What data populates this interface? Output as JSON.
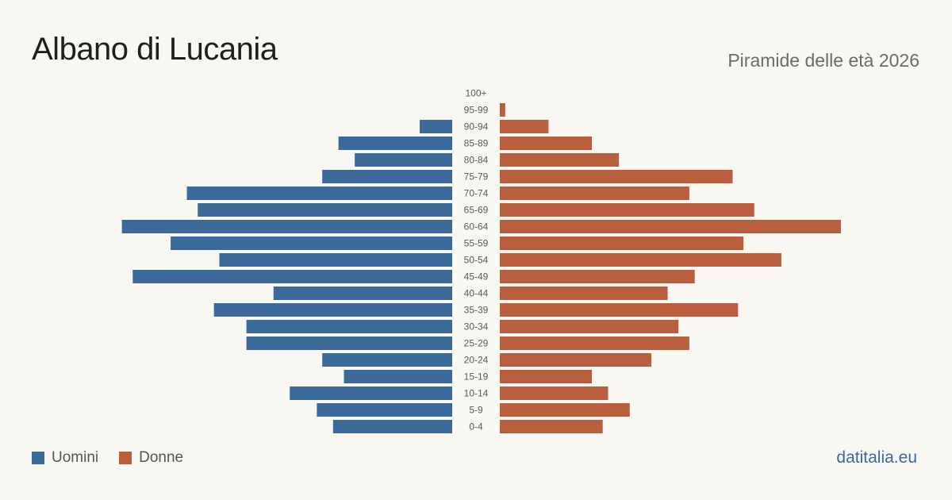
{
  "header": {
    "title": "Albano di Lucania",
    "subtitle": "Piramide delle età 2026"
  },
  "legend": {
    "men_label": "Uomini",
    "women_label": "Donne"
  },
  "footer": {
    "brand": "datitalia.eu"
  },
  "colors": {
    "men": "#3b6a9a",
    "women": "#b95f3d",
    "background": "#f9f7f2"
  },
  "chart_data": {
    "type": "bar",
    "orientation": "horizontal-pyramid",
    "categories": [
      "100+",
      "95-99",
      "90-94",
      "85-89",
      "80-84",
      "75-79",
      "70-74",
      "65-69",
      "60-64",
      "55-59",
      "50-54",
      "45-49",
      "40-44",
      "35-39",
      "30-34",
      "25-29",
      "20-24",
      "15-19",
      "10-14",
      "5-9",
      "0-4"
    ],
    "series": [
      {
        "name": "Uomini",
        "side": "left",
        "values": [
          0,
          0,
          6,
          21,
          18,
          24,
          49,
          47,
          61,
          52,
          43,
          59,
          33,
          44,
          38,
          38,
          24,
          20,
          30,
          25,
          22
        ]
      },
      {
        "name": "Donne",
        "side": "right",
        "values": [
          0,
          1,
          9,
          17,
          22,
          43,
          35,
          47,
          63,
          45,
          52,
          36,
          31,
          44,
          33,
          35,
          28,
          17,
          20,
          24,
          19
        ]
      }
    ],
    "xlim": [
      0,
      63
    ],
    "grid": false
  }
}
